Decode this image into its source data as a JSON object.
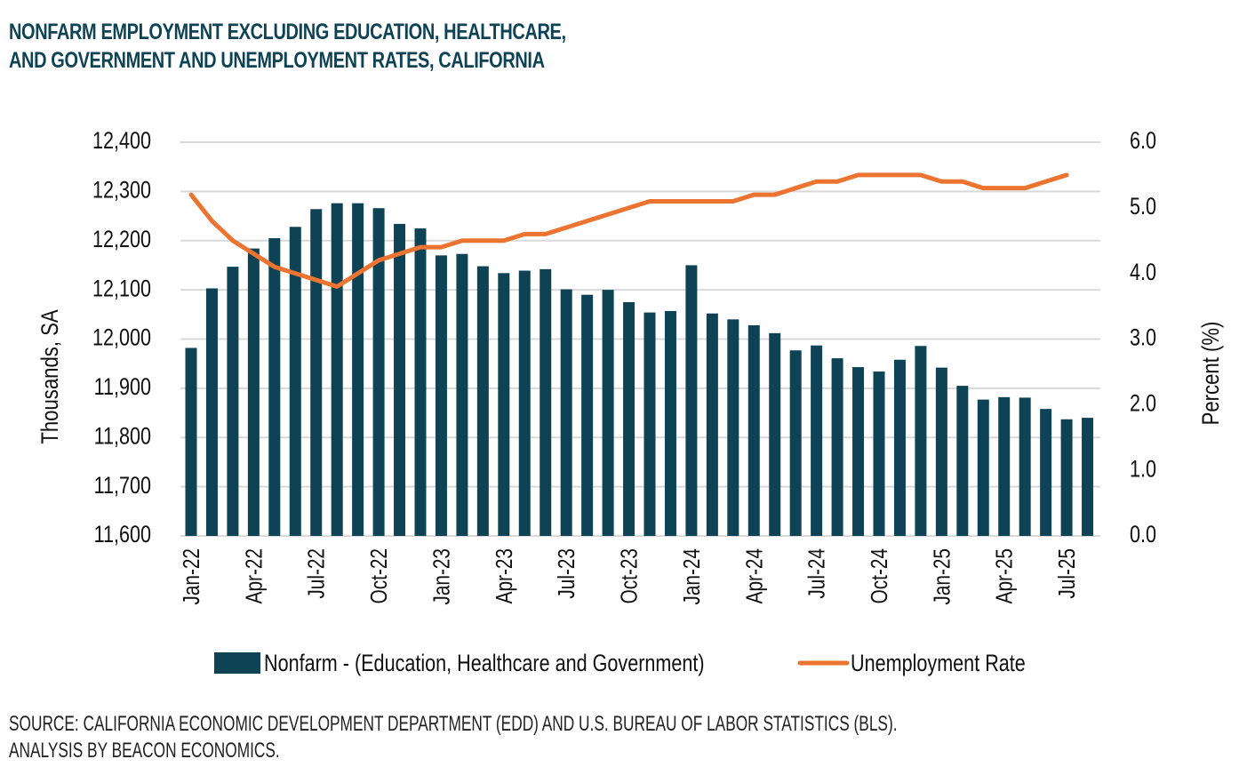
{
  "header": {
    "title_line1": "NONFARM EMPLOYMENT EXCLUDING EDUCATION, HEALTHCARE,",
    "title_line2": "AND GOVERNMENT AND UNEMPLOYMENT RATES, CALIFORNIA"
  },
  "footer": {
    "source_line1": "SOURCE: CALIFORNIA ECONOMIC DEVELOPMENT DEPARTMENT (EDD) AND U.S. BUREAU OF LABOR STATISTICS (BLS).",
    "source_line2": "ANALYSIS BY BEACON ECONOMICS."
  },
  "colors": {
    "bar": "#0e4356",
    "line": "#ed7331",
    "grid": "#d9d9d9",
    "title": "#0e4356"
  },
  "chart_data": {
    "type": "bar",
    "combo": "bar+line (dual axis)",
    "title": "NONFARM EMPLOYMENT EXCLUDING EDUCATION, HEALTHCARE, AND GOVERNMENT AND UNEMPLOYMENT RATES, CALIFORNIA",
    "categories": [
      "Jan-22",
      "Feb-22",
      "Mar-22",
      "Apr-22",
      "May-22",
      "Jun-22",
      "Jul-22",
      "Aug-22",
      "Sep-22",
      "Oct-22",
      "Nov-22",
      "Dec-22",
      "Jan-23",
      "Feb-23",
      "Mar-23",
      "Apr-23",
      "May-23",
      "Jun-23",
      "Jul-23",
      "Aug-23",
      "Sep-23",
      "Oct-23",
      "Nov-23",
      "Dec-23",
      "Jan-24",
      "Feb-24",
      "Mar-24",
      "Apr-24",
      "May-24",
      "Jun-24",
      "Jul-24",
      "Aug-24",
      "Sep-24",
      "Oct-24",
      "Nov-24",
      "Dec-24",
      "Jan-25",
      "Feb-25",
      "Mar-25",
      "Apr-25",
      "May-25",
      "Jun-25",
      "Jul-25",
      "Aug-25"
    ],
    "x_tick_labels": [
      "Jan-22",
      "Apr-22",
      "Jul-22",
      "Oct-22",
      "Jan-23",
      "Apr-23",
      "Jul-23",
      "Oct-23",
      "Jan-24",
      "Apr-24",
      "Jul-24",
      "Oct-24",
      "Jan-25",
      "Apr-25",
      "Jul-25"
    ],
    "series": [
      {
        "name": "Nonfarm - (Education, Healthcare and Government)",
        "type": "bar",
        "axis": "left",
        "values": [
          11982,
          12103,
          12147,
          12184,
          12205,
          12228,
          12264,
          12276,
          12276,
          12266,
          12234,
          12225,
          12170,
          12173,
          12148,
          12134,
          12139,
          12142,
          12101,
          12090,
          12100,
          12075,
          12054,
          12057,
          12150,
          12052,
          12040,
          12028,
          12012,
          11977,
          11987,
          11961,
          11943,
          11934,
          11958,
          11986,
          11942,
          11905,
          11877,
          11882,
          11881,
          11858,
          11837,
          11840
        ]
      },
      {
        "name": "Unemployment Rate",
        "type": "line",
        "axis": "right",
        "values": [
          5.2,
          4.8,
          4.5,
          4.3,
          4.1,
          4.0,
          3.9,
          3.8,
          4.0,
          4.2,
          4.3,
          4.4,
          4.4,
          4.5,
          4.5,
          4.5,
          4.6,
          4.6,
          4.7,
          4.8,
          4.9,
          5.0,
          5.1,
          5.1,
          5.1,
          5.1,
          5.1,
          5.2,
          5.2,
          5.3,
          5.4,
          5.4,
          5.5,
          5.5,
          5.5,
          5.5,
          5.4,
          5.4,
          5.3,
          5.3,
          5.3,
          5.4,
          5.5,
          null
        ]
      }
    ],
    "ylabel": "Thousands, SA",
    "ylim": [
      11600,
      12400
    ],
    "yticks": [
      "11,600",
      "11,700",
      "11,800",
      "11,900",
      "12,000",
      "12,100",
      "12,200",
      "12,300",
      "12,400"
    ],
    "y2label": "Percent (%)",
    "y2lim": [
      0,
      6
    ],
    "y2ticks": [
      "0.0",
      "1.0",
      "2.0",
      "3.0",
      "4.0",
      "5.0",
      "6.0"
    ],
    "grid": true,
    "legend": {
      "placement": "bottom",
      "entries": [
        "Nonfarm - (Education, Healthcare and Government)",
        "Unemployment Rate"
      ]
    }
  }
}
